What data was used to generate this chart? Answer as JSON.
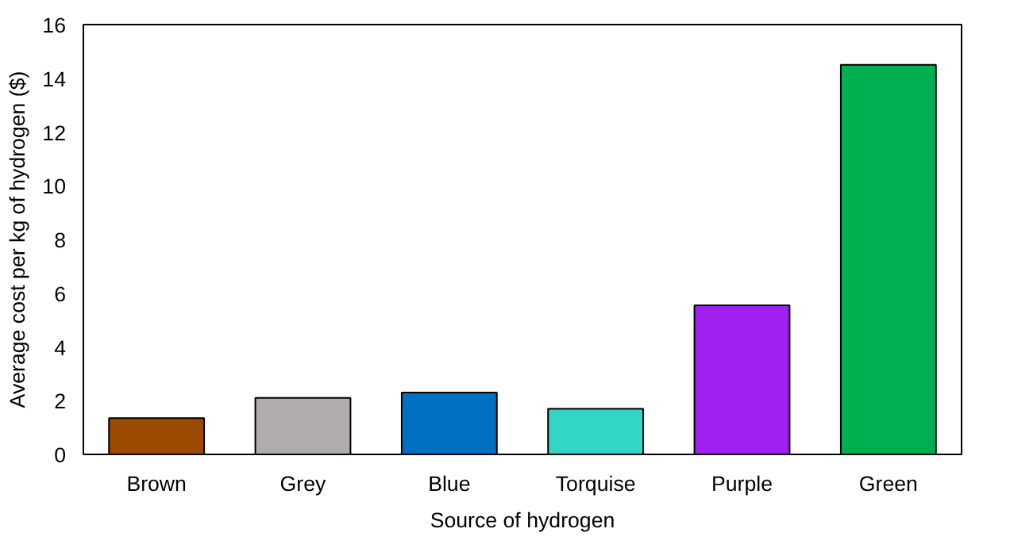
{
  "chart_data": {
    "type": "bar",
    "xlabel": "Source of hydrogen",
    "ylabel": "Average cost per kg of hydrogen ($)",
    "categories": [
      "Brown",
      "Grey",
      "Blue",
      "Torquise",
      "Purple",
      "Green"
    ],
    "values": [
      1.35,
      2.1,
      2.3,
      1.7,
      5.55,
      14.5
    ],
    "colors": [
      "#9c4a00",
      "#b0acac",
      "#0070c0",
      "#33d6c6",
      "#a020f0",
      "#00b050"
    ],
    "ylim": [
      0,
      16
    ],
    "yticks": [
      0,
      2,
      4,
      6,
      8,
      10,
      12,
      14,
      16
    ],
    "grid": false
  }
}
